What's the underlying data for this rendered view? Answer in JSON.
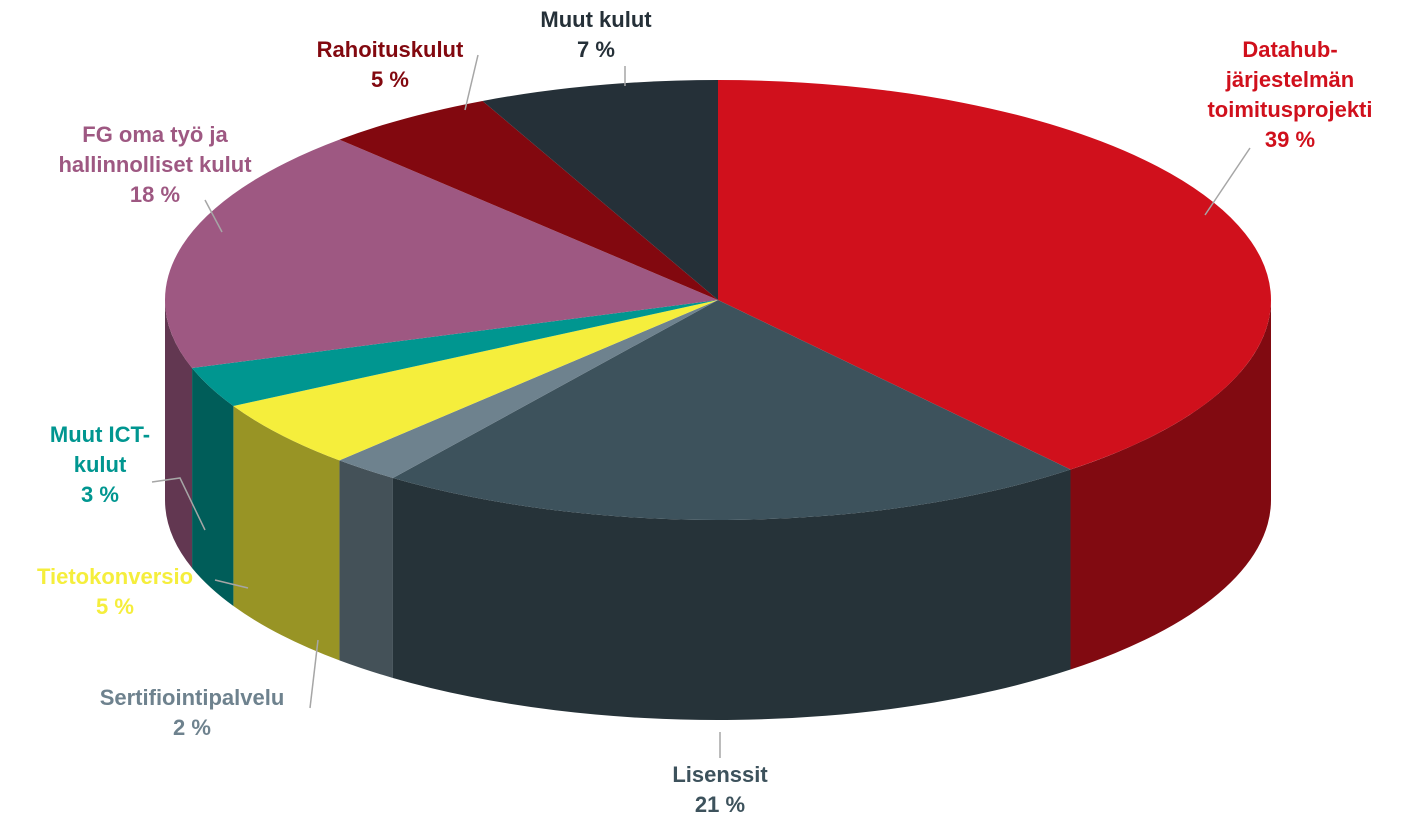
{
  "chart_data": {
    "type": "pie3d",
    "categories": [
      "Datahub-järjestelmän toimitusprojekti",
      "Lisenssit",
      "Sertifiointipalvelu",
      "Tietokonversio",
      "Muut ICT-kulut",
      "FG oma työ ja hallinnolliset kulut",
      "Rahoituskulut",
      "Muut kulut"
    ],
    "values": [
      39,
      21,
      2,
      5,
      3,
      18,
      5,
      7
    ],
    "value_labels": [
      "39 %",
      "21 %",
      "2 %",
      "5 %",
      "3 %",
      "18 %",
      "5 %",
      "7 %"
    ],
    "colors": [
      "#d0101c",
      "#3d525c",
      "#6e828e",
      "#f5ee3c",
      "#009690",
      "#9e5882",
      "#82080f",
      "#253038"
    ]
  }
}
